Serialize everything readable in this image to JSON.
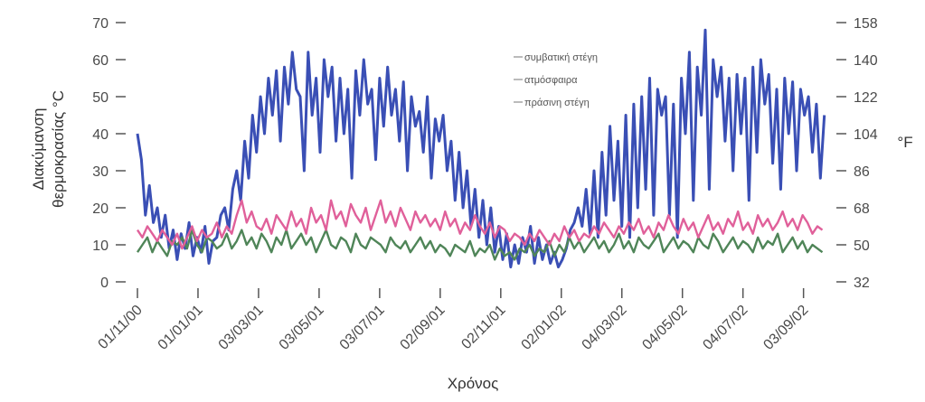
{
  "chart_data": {
    "type": "line",
    "title": "",
    "xlabel": "Χρόνος",
    "ylabel_lines": [
      "Διακύμανση",
      "θερμοκρασίας °C"
    ],
    "ylabel_right": "°F",
    "ylim": [
      0,
      70
    ],
    "yticks": [
      0,
      10,
      20,
      30,
      40,
      50,
      60,
      70
    ],
    "yticks_right": [
      32,
      50,
      68,
      86,
      104,
      122,
      140,
      158
    ],
    "xlim_days": [
      0,
      695
    ],
    "xtick_labels": [
      "01/11/00",
      "01/01/01",
      "03/03/01",
      "03/05/01",
      "03/07/01",
      "02/09/01",
      "02/11/01",
      "02/01/02",
      "04/03/02",
      "04/05/02",
      "04/07/02",
      "03/09/02"
    ],
    "xtick_days": [
      0,
      61,
      122,
      183,
      244,
      305,
      366,
      427,
      488,
      549,
      610,
      671
    ],
    "grid": false,
    "legend_position": "top-right",
    "series": [
      {
        "name": "συμβατική στέγη",
        "color": "#3a4fb5",
        "x": [
          0,
          4,
          8,
          12,
          16,
          20,
          24,
          28,
          32,
          36,
          40,
          44,
          48,
          52,
          56,
          60,
          64,
          68,
          72,
          76,
          80,
          84,
          88,
          92,
          96,
          100,
          104,
          108,
          112,
          116,
          120,
          124,
          128,
          132,
          136,
          140,
          144,
          148,
          152,
          156,
          160,
          164,
          168,
          172,
          176,
          180,
          184,
          188,
          192,
          196,
          200,
          204,
          208,
          212,
          216,
          220,
          224,
          228,
          232,
          236,
          240,
          244,
          248,
          252,
          256,
          260,
          264,
          268,
          272,
          276,
          280,
          284,
          288,
          292,
          296,
          300,
          304,
          308,
          312,
          316,
          320,
          324,
          328,
          332,
          336,
          340,
          344,
          348,
          352,
          356,
          360,
          364,
          368,
          372,
          376,
          380,
          384,
          388,
          392,
          396,
          400,
          404,
          408,
          412,
          416,
          420,
          424,
          428,
          432,
          436,
          440,
          444,
          448,
          452,
          456,
          460,
          464,
          468,
          472,
          476,
          480,
          484,
          488,
          492,
          496,
          500,
          504,
          508,
          512,
          516,
          520,
          524,
          528,
          532,
          536,
          540,
          544,
          548,
          552,
          556,
          560,
          564,
          568,
          572,
          576,
          580,
          584,
          588,
          592,
          596,
          600,
          604,
          608,
          612,
          616,
          620,
          624,
          628,
          632,
          636,
          640,
          644,
          648,
          652,
          656,
          660,
          664,
          668,
          672,
          676,
          680,
          684,
          688,
          692
        ],
        "y": [
          40,
          33,
          18,
          26,
          16,
          20,
          12,
          18,
          9,
          14,
          6,
          13,
          9,
          16,
          7,
          12,
          8,
          15,
          5,
          11,
          12,
          18,
          20,
          14,
          25,
          30,
          22,
          38,
          28,
          45,
          35,
          50,
          40,
          55,
          45,
          57,
          38,
          58,
          48,
          62,
          52,
          50,
          30,
          62,
          45,
          55,
          35,
          60,
          50,
          58,
          38,
          55,
          40,
          52,
          28,
          57,
          45,
          60,
          48,
          52,
          33,
          55,
          42,
          58,
          45,
          52,
          38,
          54,
          30,
          50,
          42,
          46,
          35,
          50,
          28,
          44,
          38,
          45,
          30,
          38,
          22,
          35,
          20,
          30,
          15,
          25,
          12,
          22,
          10,
          20,
          8,
          15,
          6,
          13,
          4,
          10,
          5,
          12,
          8,
          15,
          5,
          12,
          6,
          10,
          5,
          8,
          4,
          6,
          9,
          14,
          16,
          20,
          15,
          25,
          13,
          30,
          12,
          35,
          18,
          42,
          22,
          38,
          15,
          45,
          12,
          48,
          20,
          50,
          25,
          55,
          18,
          52,
          45,
          50,
          18,
          48,
          12,
          55,
          40,
          62,
          22,
          58,
          45,
          68,
          25,
          60,
          50,
          58,
          38,
          55,
          30,
          56,
          40,
          55,
          22,
          58,
          35,
          60,
          48,
          56,
          32,
          52,
          25,
          55,
          40,
          54,
          30,
          52,
          45,
          50,
          35,
          48,
          28,
          45
        ]
      },
      {
        "name": "ατμόσφαιρα",
        "color": "#4f8558",
        "x": [
          0,
          5,
          10,
          15,
          20,
          25,
          30,
          35,
          40,
          45,
          50,
          55,
          60,
          65,
          70,
          75,
          80,
          85,
          90,
          95,
          100,
          105,
          110,
          115,
          120,
          125,
          130,
          135,
          140,
          145,
          150,
          155,
          160,
          165,
          170,
          175,
          180,
          185,
          190,
          195,
          200,
          205,
          210,
          215,
          220,
          225,
          230,
          235,
          240,
          245,
          250,
          255,
          260,
          265,
          270,
          275,
          280,
          285,
          290,
          295,
          300,
          305,
          310,
          315,
          320,
          325,
          330,
          335,
          340,
          345,
          350,
          355,
          360,
          365,
          370,
          375,
          380,
          385,
          390,
          395,
          400,
          405,
          410,
          415,
          420,
          425,
          430,
          435,
          440,
          445,
          450,
          455,
          460,
          465,
          470,
          475,
          480,
          485,
          490,
          495,
          500,
          505,
          510,
          515,
          520,
          525,
          530,
          535,
          540,
          545,
          550,
          555,
          560,
          565,
          570,
          575,
          580,
          585,
          590,
          595,
          600,
          605,
          610,
          615,
          620,
          625,
          630,
          635,
          640,
          645,
          650,
          655,
          660,
          665,
          670,
          675,
          680,
          685,
          690
        ],
        "y": [
          8,
          10,
          12,
          8,
          11,
          9,
          7,
          11,
          10,
          12,
          9,
          14,
          10,
          8,
          12,
          11,
          9,
          10,
          13,
          9,
          11,
          14,
          10,
          12,
          9,
          13,
          11,
          8,
          12,
          10,
          14,
          9,
          11,
          13,
          10,
          12,
          8,
          11,
          14,
          10,
          9,
          12,
          11,
          8,
          13,
          10,
          9,
          12,
          11,
          10,
          8,
          12,
          10,
          9,
          11,
          8,
          10,
          12,
          9,
          11,
          8,
          10,
          9,
          7,
          10,
          9,
          8,
          11,
          7,
          9,
          8,
          10,
          6,
          9,
          7,
          8,
          6,
          9,
          8,
          10,
          7,
          9,
          8,
          11,
          7,
          10,
          8,
          12,
          9,
          11,
          8,
          10,
          12,
          9,
          11,
          8,
          10,
          13,
          9,
          11,
          8,
          12,
          10,
          9,
          11,
          13,
          8,
          10,
          12,
          9,
          11,
          10,
          8,
          12,
          10,
          9,
          13,
          11,
          8,
          10,
          12,
          9,
          11,
          10,
          8,
          12,
          9,
          11,
          10,
          13,
          8,
          10,
          12,
          9,
          11,
          8,
          10,
          9,
          8
        ]
      },
      {
        "name": "πράσινη στέγη",
        "color": "#e0609a",
        "x": [
          0,
          5,
          10,
          15,
          20,
          25,
          30,
          35,
          40,
          45,
          50,
          55,
          60,
          65,
          70,
          75,
          80,
          85,
          90,
          95,
          100,
          105,
          110,
          115,
          120,
          125,
          130,
          135,
          140,
          145,
          150,
          155,
          160,
          165,
          170,
          175,
          180,
          185,
          190,
          195,
          200,
          205,
          210,
          215,
          220,
          225,
          230,
          235,
          240,
          245,
          250,
          255,
          260,
          265,
          270,
          275,
          280,
          285,
          290,
          295,
          300,
          305,
          310,
          315,
          320,
          325,
          330,
          335,
          340,
          345,
          350,
          355,
          360,
          365,
          370,
          375,
          380,
          385,
          390,
          395,
          400,
          405,
          410,
          415,
          420,
          425,
          430,
          435,
          440,
          445,
          450,
          455,
          460,
          465,
          470,
          475,
          480,
          485,
          490,
          495,
          500,
          505,
          510,
          515,
          520,
          525,
          530,
          535,
          540,
          545,
          550,
          555,
          560,
          565,
          570,
          575,
          580,
          585,
          590,
          595,
          600,
          605,
          610,
          615,
          620,
          625,
          630,
          635,
          640,
          645,
          650,
          655,
          660,
          665,
          670,
          675,
          680,
          685,
          690
        ],
        "y": [
          14,
          12,
          15,
          13,
          11,
          14,
          12,
          10,
          13,
          9,
          12,
          15,
          11,
          14,
          12,
          13,
          16,
          12,
          15,
          13,
          18,
          22,
          16,
          19,
          15,
          14,
          17,
          13,
          18,
          16,
          14,
          19,
          15,
          17,
          13,
          20,
          16,
          18,
          14,
          22,
          17,
          19,
          15,
          21,
          18,
          16,
          20,
          14,
          18,
          22,
          16,
          19,
          15,
          20,
          17,
          14,
          19,
          16,
          18,
          15,
          17,
          14,
          19,
          15,
          17,
          13,
          16,
          14,
          18,
          15,
          13,
          16,
          12,
          15,
          14,
          11,
          13,
          12,
          10,
          13,
          11,
          14,
          12,
          10,
          13,
          11,
          15,
          12,
          14,
          11,
          13,
          12,
          15,
          13,
          16,
          14,
          12,
          15,
          13,
          16,
          14,
          17,
          13,
          15,
          12,
          16,
          14,
          18,
          15,
          13,
          17,
          14,
          16,
          12,
          15,
          18,
          14,
          16,
          13,
          17,
          15,
          19,
          14,
          16,
          13,
          18,
          15,
          17,
          14,
          16,
          19,
          15,
          17,
          14,
          18,
          16,
          13,
          15,
          14
        ]
      }
    ]
  }
}
